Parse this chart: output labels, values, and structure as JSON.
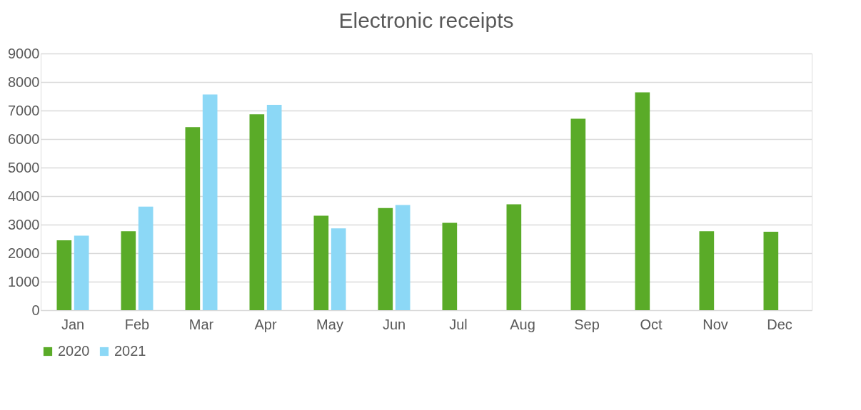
{
  "chart_data": {
    "type": "bar",
    "title": "Electronic receipts",
    "categories": [
      "Jan",
      "Feb",
      "Mar",
      "Apr",
      "May",
      "Jun",
      "Jul",
      "Aug",
      "Sep",
      "Oct",
      "Nov",
      "Dec"
    ],
    "series": [
      {
        "name": "2020",
        "color": "#5aab28",
        "values": [
          2450,
          2770,
          6420,
          6870,
          3310,
          3580,
          3060,
          3710,
          6710,
          7640,
          2770,
          2750
        ]
      },
      {
        "name": "2021",
        "color": "#8cd8f6",
        "values": [
          2610,
          3630,
          7560,
          7200,
          2870,
          3690,
          null,
          null,
          null,
          null,
          null,
          null
        ]
      }
    ],
    "ylim": [
      0,
      9000
    ],
    "yticks": [
      0,
      1000,
      2000,
      3000,
      4000,
      5000,
      6000,
      7000,
      8000,
      9000
    ],
    "grid": "y",
    "legend": "bottom"
  }
}
